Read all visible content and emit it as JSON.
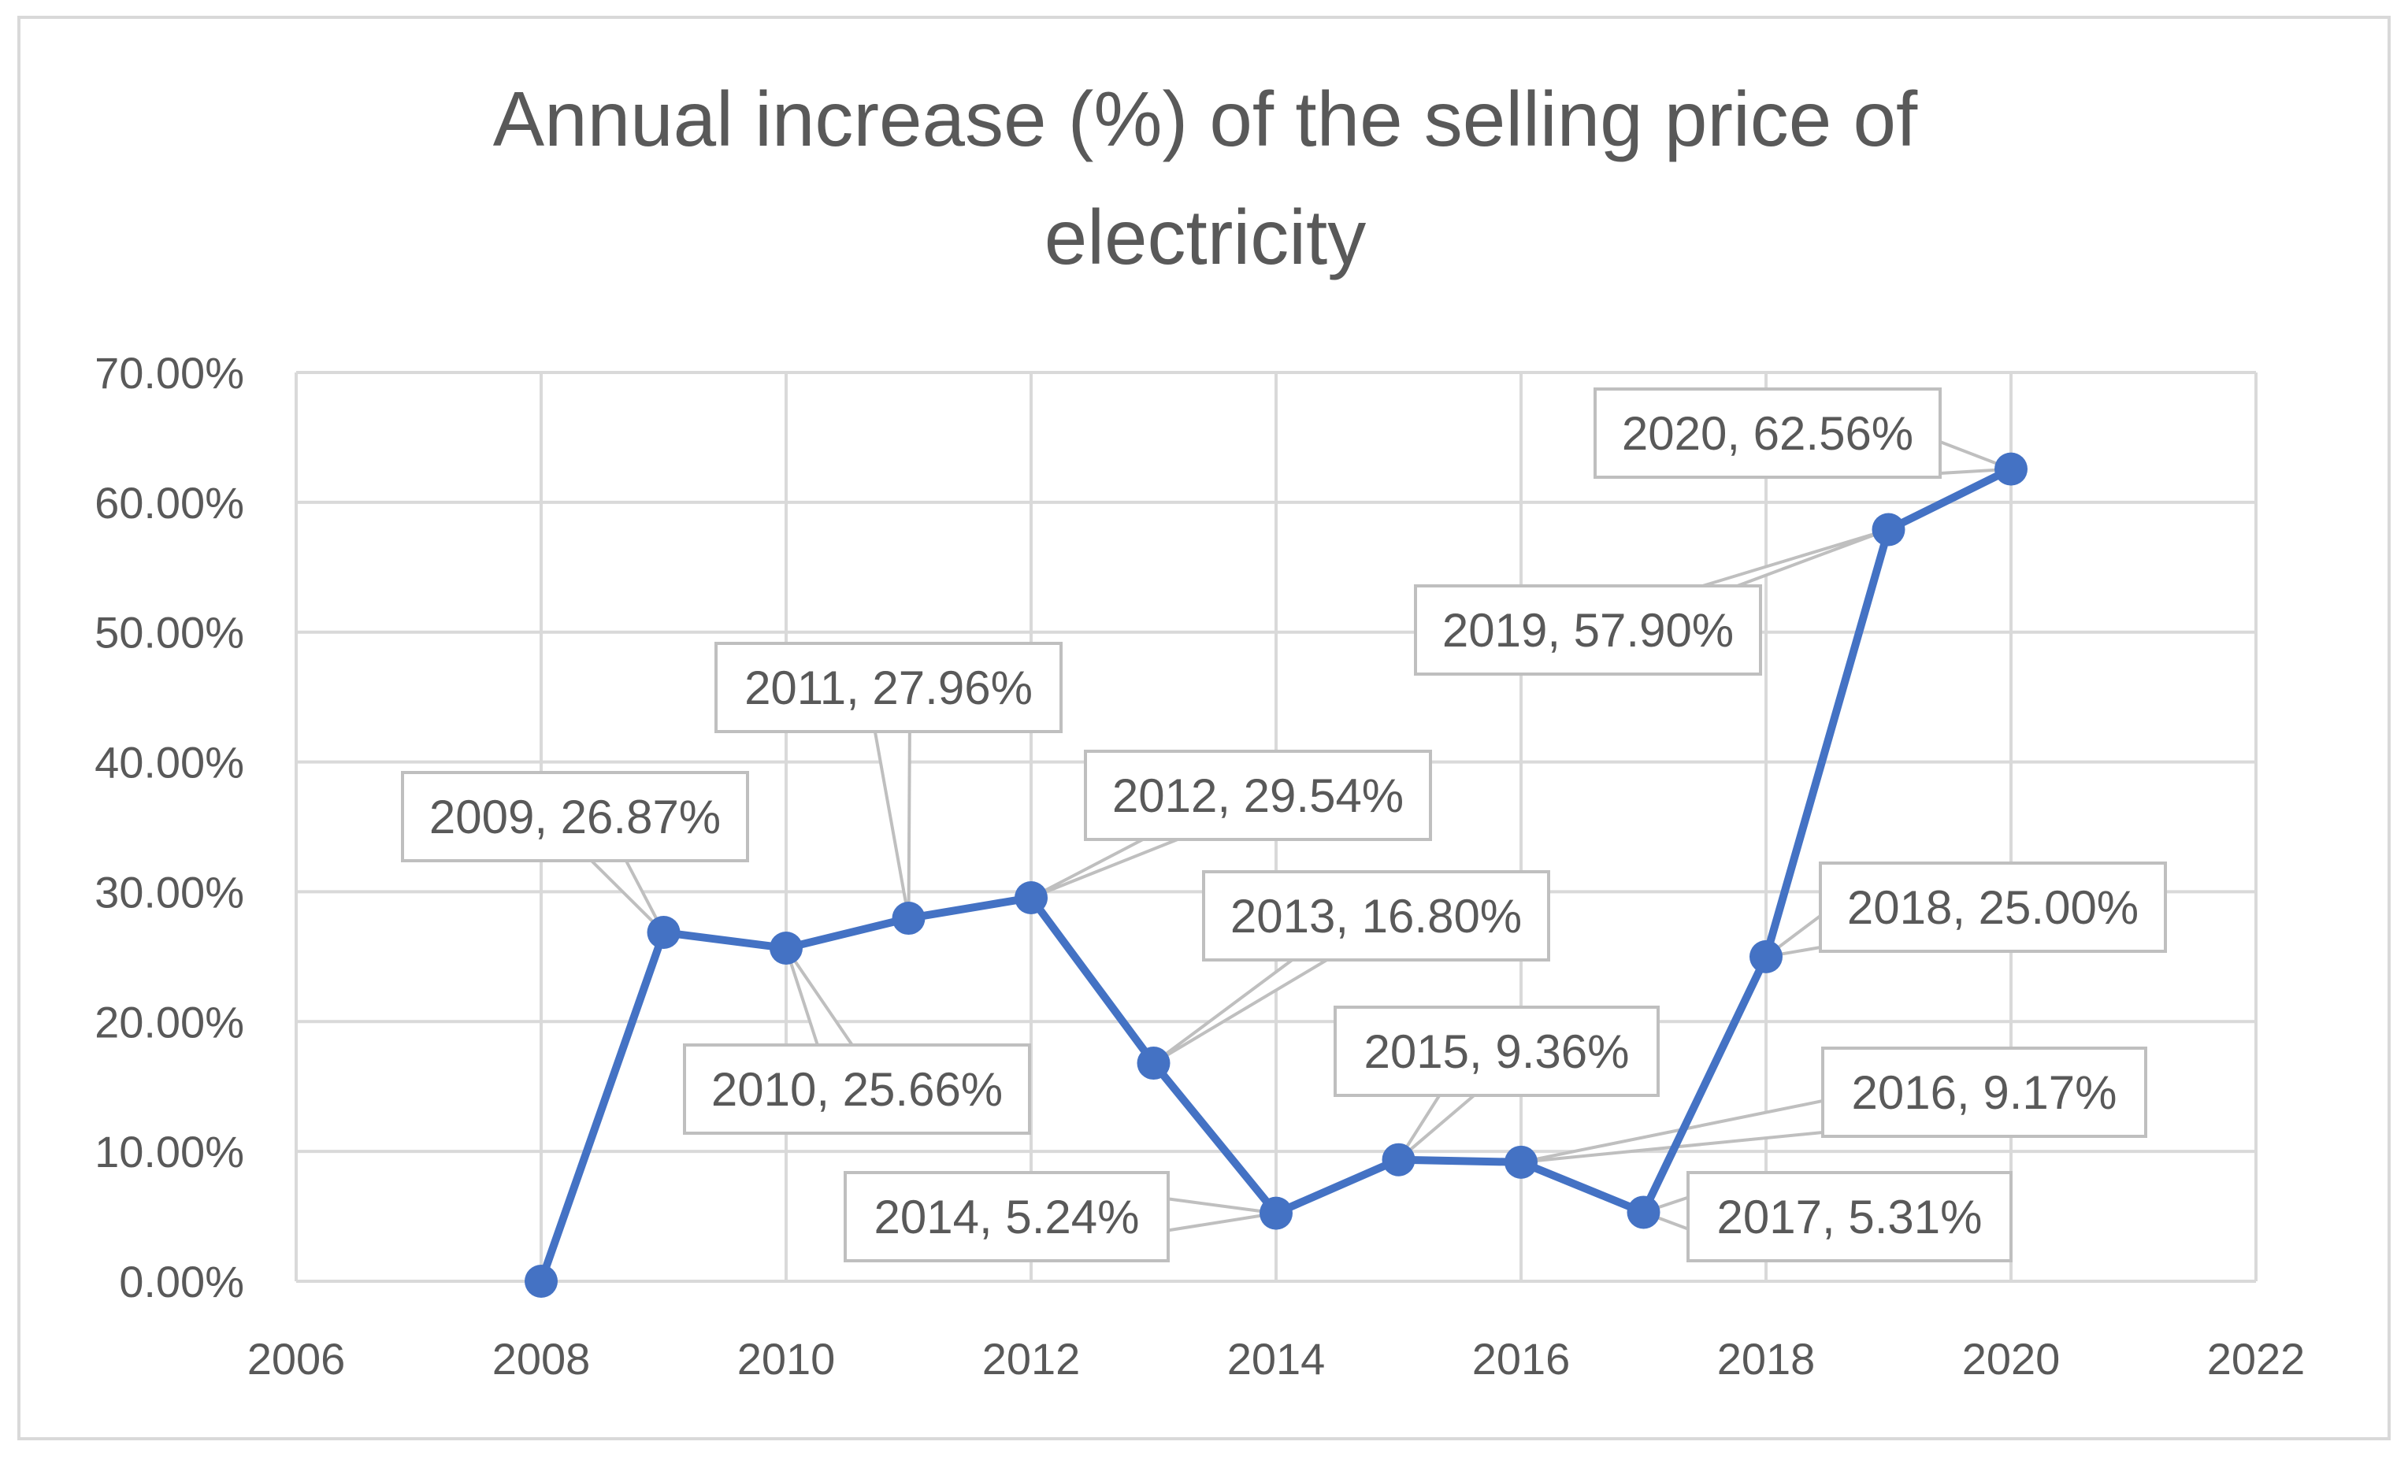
{
  "chart_data": {
    "type": "line",
    "title_lines": [
      "Annual increase (%) of the selling price of",
      "electricity"
    ],
    "xlabel": "",
    "ylabel": "",
    "xlim": [
      2006,
      2022
    ],
    "ylim": [
      0,
      70
    ],
    "x_ticks": [
      2006,
      2008,
      2010,
      2012,
      2014,
      2016,
      2018,
      2020,
      2022
    ],
    "y_ticks": [
      0,
      10,
      20,
      30,
      40,
      50,
      60,
      70
    ],
    "y_tick_labels": [
      "0.00%",
      "10.00%",
      "20.00%",
      "30.00%",
      "40.00%",
      "50.00%",
      "60.00%",
      "70.00%"
    ],
    "grid": true,
    "legend": "none",
    "series": [
      {
        "name": "Annual increase",
        "color": "#4472C4",
        "x": [
          2008,
          2009,
          2010,
          2011,
          2012,
          2013,
          2014,
          2015,
          2016,
          2017,
          2018,
          2019,
          2020
        ],
        "values": [
          0.0,
          26.87,
          25.66,
          27.96,
          29.54,
          16.8,
          5.24,
          9.36,
          9.17,
          5.31,
          25.0,
          57.9,
          62.56
        ]
      }
    ],
    "data_labels": [
      {
        "x": 2009,
        "text": "2009, 26.87%"
      },
      {
        "x": 2010,
        "text": "2010, 25.66%"
      },
      {
        "x": 2011,
        "text": "2011, 27.96%"
      },
      {
        "x": 2012,
        "text": "2012, 29.54%"
      },
      {
        "x": 2013,
        "text": "2013, 16.80%"
      },
      {
        "x": 2014,
        "text": "2014, 5.24%"
      },
      {
        "x": 2015,
        "text": "2015, 9.36%"
      },
      {
        "x": 2016,
        "text": "2016, 9.17%"
      },
      {
        "x": 2017,
        "text": "2017, 5.31%"
      },
      {
        "x": 2018,
        "text": "2018, 25.00%"
      },
      {
        "x": 2019,
        "text": "2019, 57.90%"
      },
      {
        "x": 2020,
        "text": "2020, 62.56%"
      }
    ]
  }
}
